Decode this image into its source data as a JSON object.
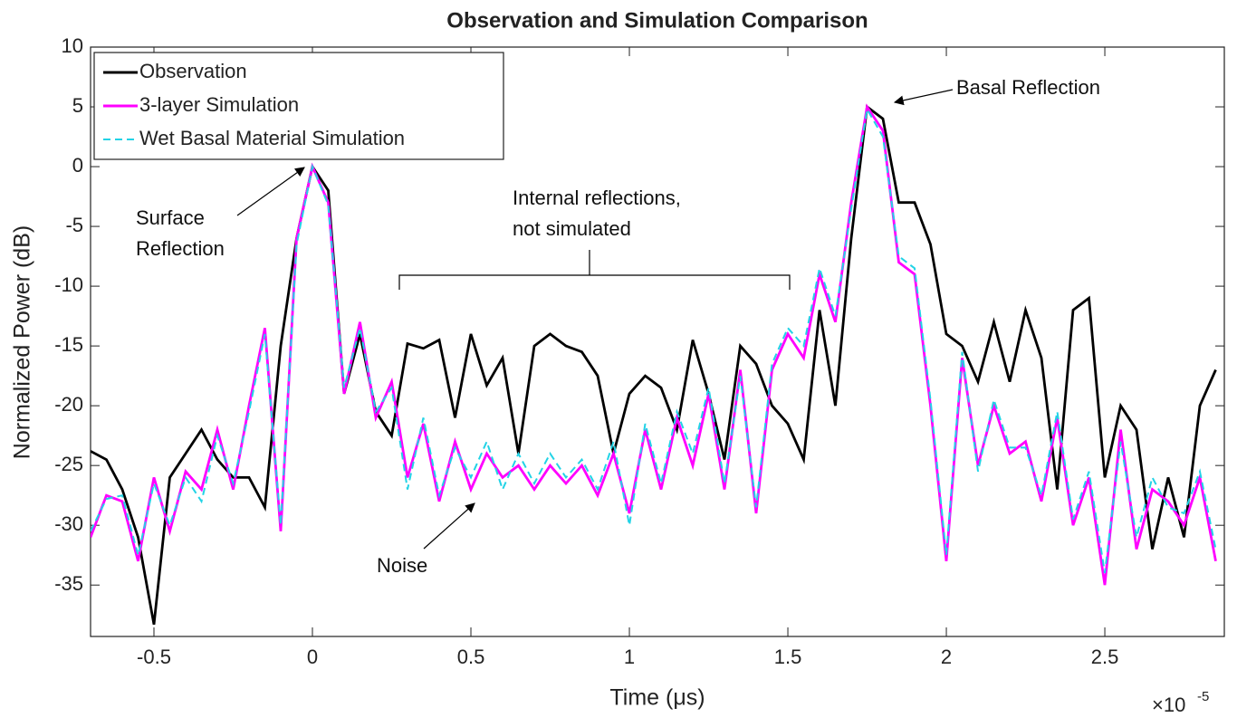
{
  "chart_data": {
    "type": "line",
    "title": "Observation and Simulation Comparison",
    "x_label": "Time (μs)",
    "y_label": "Normalized Power (dB)",
    "x_multiplier": "×10",
    "x_multiplier_exponent": "-5",
    "x": [
      -0.7,
      -0.65,
      -0.6,
      -0.55,
      -0.5,
      -0.45,
      -0.4,
      -0.35,
      -0.3,
      -0.25,
      -0.2,
      -0.15,
      -0.1,
      -0.05,
      0,
      0.05,
      0.1,
      0.15,
      0.2,
      0.25,
      0.3,
      0.35,
      0.4,
      0.45,
      0.5,
      0.55,
      0.6,
      0.65,
      0.7,
      0.75,
      0.8,
      0.85,
      0.9,
      0.95,
      1.0,
      1.05,
      1.1,
      1.15,
      1.2,
      1.25,
      1.3,
      1.35,
      1.4,
      1.45,
      1.5,
      1.55,
      1.6,
      1.65,
      1.7,
      1.75,
      1.8,
      1.85,
      1.9,
      1.95,
      2.0,
      2.05,
      2.1,
      2.15,
      2.2,
      2.25,
      2.3,
      2.35,
      2.4,
      2.45,
      2.5,
      2.55,
      2.6,
      2.65,
      2.7,
      2.75,
      2.8,
      2.85
    ],
    "series": [
      {
        "name": "Observation",
        "color": "#000000",
        "dash": false,
        "values": [
          -23.8,
          -24.5,
          -27,
          -31,
          -38.3,
          -26,
          -24,
          -22,
          -24.5,
          -26,
          -26,
          -28.5,
          -15,
          -6,
          0,
          -2,
          -19,
          -14,
          -20.5,
          -22.5,
          -14.8,
          -15.2,
          -14.5,
          -21,
          -14,
          -18.3,
          -16,
          -24,
          -15,
          -14,
          -15,
          -15.5,
          -17.5,
          -24,
          -19,
          -17.5,
          -18.5,
          -22,
          -14.5,
          -19,
          -24.5,
          -15,
          -16.5,
          -20,
          -21.5,
          -24.5,
          -12,
          -20,
          -6,
          5,
          4,
          -3,
          -3,
          -6.5,
          -14,
          -15,
          -18,
          -13,
          -18,
          -12,
          -16,
          -27,
          -12,
          -11,
          -26,
          -20,
          -22,
          -32,
          -26,
          -31,
          -20,
          -17
        ]
      },
      {
        "name": "3-layer Simulation",
        "color": "#ff00ff",
        "dash": false,
        "values": [
          -31,
          -27.5,
          -28,
          -33,
          -26,
          -30.5,
          -25.5,
          -27,
          -22,
          -27,
          -20,
          -13.5,
          -30.5,
          -6,
          0,
          -3,
          -19,
          -13,
          -21,
          -18,
          -26,
          -21.5,
          -28,
          -23,
          -27,
          -24,
          -26,
          -25,
          -27,
          -25,
          -26.5,
          -25,
          -27.5,
          -24,
          -29,
          -22,
          -27,
          -21,
          -25,
          -19,
          -27,
          -17,
          -29,
          -17,
          -14,
          -16,
          -9,
          -13,
          -3,
          5,
          3,
          -8,
          -9,
          -20,
          -33,
          -16,
          -25,
          -20,
          -24,
          -23,
          -28,
          -21,
          -30,
          -26,
          -35,
          -22,
          -32,
          -27,
          -28,
          -30,
          -26,
          -33
        ]
      },
      {
        "name": "Wet Basal Material Simulation",
        "color": "#22d3e6",
        "dash": true,
        "values": [
          -30.5,
          -27.8,
          -27.5,
          -32.5,
          -26.5,
          -30,
          -26,
          -28,
          -22.5,
          -26.5,
          -20.5,
          -14,
          -30,
          -6.5,
          0,
          -3.2,
          -18.5,
          -13.5,
          -20.5,
          -18.5,
          -27,
          -21,
          -27.5,
          -23.5,
          -26,
          -23,
          -27,
          -24,
          -26.5,
          -24,
          -26,
          -24.5,
          -27,
          -23,
          -30,
          -21.5,
          -26.5,
          -20.5,
          -24,
          -18.5,
          -26.5,
          -17.5,
          -28.5,
          -16.5,
          -13.5,
          -15,
          -8.5,
          -12.5,
          -3.5,
          4.8,
          2.5,
          -7.5,
          -8.5,
          -19.5,
          -32.5,
          -15.5,
          -25.5,
          -19.5,
          -23.5,
          -23.5,
          -27.5,
          -20.5,
          -29.5,
          -25.5,
          -34,
          -23,
          -31,
          -26,
          -28.5,
          -29,
          -25.5,
          -32
        ]
      }
    ],
    "xlim": [
      -0.7,
      2.877
    ],
    "ylim": [
      -39.3,
      10
    ],
    "xticks": [
      -0.5,
      0,
      0.5,
      1,
      1.5,
      2,
      2.5
    ],
    "yticks": [
      -35,
      -30,
      -25,
      -20,
      -15,
      -10,
      -5,
      0,
      5,
      10
    ],
    "legend": "upper left",
    "annotations": {
      "basal": "Basal Reflection",
      "surface": [
        "Surface",
        "Reflection"
      ],
      "internal": [
        "Internal reflections,",
        "not simulated"
      ],
      "noise": "Noise"
    }
  }
}
